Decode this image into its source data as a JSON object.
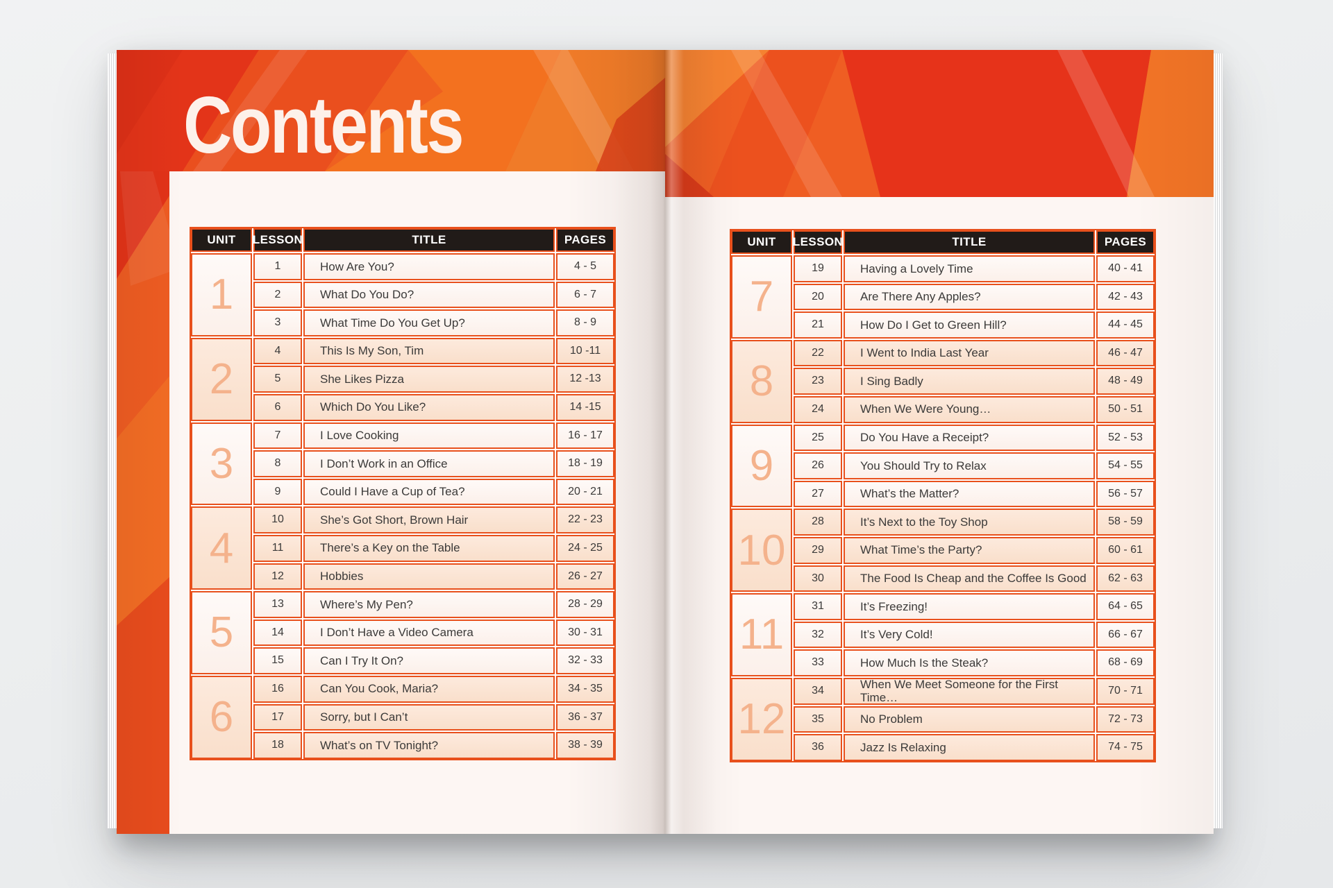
{
  "document": {
    "title": "Contents"
  },
  "table": {
    "headers": {
      "unit": "UNIT",
      "lesson": "LESSON",
      "title": "TITLE",
      "pages": "PAGES"
    }
  },
  "left_page": {
    "units": [
      {
        "unit": "1",
        "lessons": [
          {
            "lesson": "1",
            "title": "How Are You?",
            "pages": "4 - 5"
          },
          {
            "lesson": "2",
            "title": "What Do You Do?",
            "pages": "6 - 7"
          },
          {
            "lesson": "3",
            "title": "What Time Do You Get Up?",
            "pages": "8 - 9"
          }
        ]
      },
      {
        "unit": "2",
        "lessons": [
          {
            "lesson": "4",
            "title": "This Is My Son, Tim",
            "pages": "10 -11"
          },
          {
            "lesson": "5",
            "title": "She Likes Pizza",
            "pages": "12 -13"
          },
          {
            "lesson": "6",
            "title": "Which Do You Like?",
            "pages": "14 -15"
          }
        ]
      },
      {
        "unit": "3",
        "lessons": [
          {
            "lesson": "7",
            "title": "I Love Cooking",
            "pages": "16 - 17"
          },
          {
            "lesson": "8",
            "title": "I Don’t Work in an Office",
            "pages": "18 - 19"
          },
          {
            "lesson": "9",
            "title": "Could I Have a Cup of Tea?",
            "pages": "20 - 21"
          }
        ]
      },
      {
        "unit": "4",
        "lessons": [
          {
            "lesson": "10",
            "title": "She’s Got Short, Brown Hair",
            "pages": "22 - 23"
          },
          {
            "lesson": "11",
            "title": "There’s a Key on the Table",
            "pages": "24 - 25"
          },
          {
            "lesson": "12",
            "title": "Hobbies",
            "pages": "26 - 27"
          }
        ]
      },
      {
        "unit": "5",
        "lessons": [
          {
            "lesson": "13",
            "title": "Where’s My Pen?",
            "pages": "28 - 29"
          },
          {
            "lesson": "14",
            "title": "I Don’t Have a Video Camera",
            "pages": "30 - 31"
          },
          {
            "lesson": "15",
            "title": "Can I Try It On?",
            "pages": "32 - 33"
          }
        ]
      },
      {
        "unit": "6",
        "lessons": [
          {
            "lesson": "16",
            "title": "Can You Cook, Maria?",
            "pages": "34 - 35"
          },
          {
            "lesson": "17",
            "title": "Sorry, but I Can’t",
            "pages": "36 - 37"
          },
          {
            "lesson": "18",
            "title": "What’s on TV Tonight?",
            "pages": "38 - 39"
          }
        ]
      }
    ]
  },
  "right_page": {
    "units": [
      {
        "unit": "7",
        "lessons": [
          {
            "lesson": "19",
            "title": "Having a Lovely Time",
            "pages": "40 - 41"
          },
          {
            "lesson": "20",
            "title": "Are There Any Apples?",
            "pages": "42 - 43"
          },
          {
            "lesson": "21",
            "title": "How Do I Get to Green Hill?",
            "pages": "44 - 45"
          }
        ]
      },
      {
        "unit": "8",
        "lessons": [
          {
            "lesson": "22",
            "title": "I Went to India Last Year",
            "pages": "46 - 47"
          },
          {
            "lesson": "23",
            "title": "I Sing Badly",
            "pages": "48 - 49"
          },
          {
            "lesson": "24",
            "title": "When We Were Young…",
            "pages": "50 - 51"
          }
        ]
      },
      {
        "unit": "9",
        "lessons": [
          {
            "lesson": "25",
            "title": "Do You Have a Receipt?",
            "pages": "52 - 53"
          },
          {
            "lesson": "26",
            "title": "You Should Try to Relax",
            "pages": "54 - 55"
          },
          {
            "lesson": "27",
            "title": "What’s the Matter?",
            "pages": "56 - 57"
          }
        ]
      },
      {
        "unit": "10",
        "lessons": [
          {
            "lesson": "28",
            "title": "It’s Next to the Toy Shop",
            "pages": "58 - 59"
          },
          {
            "lesson": "29",
            "title": "What Time’s the Party?",
            "pages": "60 - 61"
          },
          {
            "lesson": "30",
            "title": "The Food Is Cheap and the Coffee Is Good",
            "pages": "62 - 63"
          }
        ]
      },
      {
        "unit": "11",
        "lessons": [
          {
            "lesson": "31",
            "title": "It’s Freezing!",
            "pages": "64 - 65"
          },
          {
            "lesson": "32",
            "title": "It’s Very Cold!",
            "pages": "66 - 67"
          },
          {
            "lesson": "33",
            "title": "How Much Is the Steak?",
            "pages": "68 - 69"
          }
        ]
      },
      {
        "unit": "12",
        "lessons": [
          {
            "lesson": "34",
            "title": "When We Meet Someone for the First Time…",
            "pages": "70 - 71"
          },
          {
            "lesson": "35",
            "title": "No Problem",
            "pages": "72 - 73"
          },
          {
            "lesson": "36",
            "title": "Jazz Is Relaxing",
            "pages": "74 - 75"
          }
        ]
      }
    ]
  },
  "colors": {
    "accent_orange": "#e8501c",
    "banner_base": "#ef5e23",
    "banner_red": "#e6331a",
    "header_bg": "#211b18",
    "group_light": "#fdf5f1",
    "group_peach": "#fbe5d4",
    "unit_numeral": "#f4b28c",
    "panel": "#fdf6f3",
    "text": "#3b3a39"
  }
}
